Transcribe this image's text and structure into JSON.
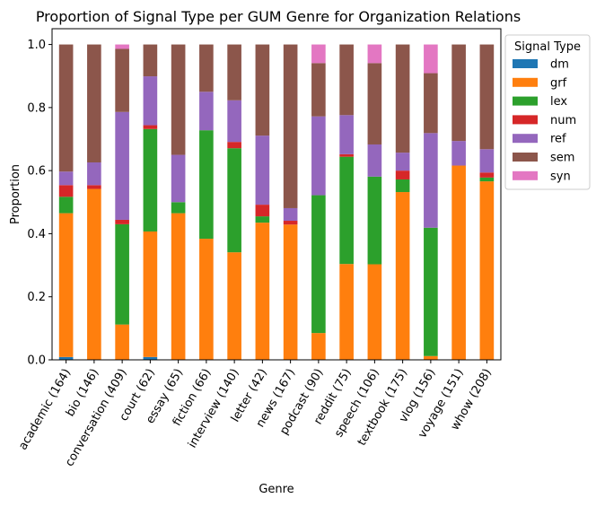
{
  "chart_data": {
    "type": "bar",
    "stacked": true,
    "title": "Proportion of Signal Type per GUM Genre for Organization Relations",
    "xlabel": "Genre",
    "ylabel": "Proportion",
    "ylim": [
      0,
      1.05
    ],
    "yticks": [
      "0.0",
      "0.2",
      "0.4",
      "0.6",
      "0.8",
      "1.0"
    ],
    "categories": [
      "academic (164)",
      "bio (146)",
      "conversation (409)",
      "court (62)",
      "essay (65)",
      "fiction (66)",
      "interview (140)",
      "letter (42)",
      "news (167)",
      "podcast (90)",
      "reddit (75)",
      "speech (106)",
      "textbook (175)",
      "vlog (156)",
      "voyage (151)",
      "whow (208)"
    ],
    "legend": {
      "title": "Signal Type",
      "position": "upper right, outside plot"
    },
    "series": [
      {
        "name": "dm",
        "color": "#1f77b4",
        "values": [
          0.009,
          0,
          0,
          0.009,
          0,
          0,
          0,
          0,
          0,
          0,
          0,
          0,
          0,
          0,
          0,
          0
        ]
      },
      {
        "name": "grf",
        "color": "#ff7f0e",
        "values": [
          0.456,
          0.542,
          0.112,
          0.398,
          0.465,
          0.384,
          0.341,
          0.435,
          0.429,
          0.085,
          0.304,
          0.303,
          0.532,
          0.012,
          0.616,
          0.566
        ]
      },
      {
        "name": "lex",
        "color": "#2ca02c",
        "values": [
          0.052,
          0,
          0.318,
          0.325,
          0.035,
          0.344,
          0.33,
          0.02,
          0,
          0.437,
          0.34,
          0.278,
          0.04,
          0.407,
          0,
          0.012
        ]
      },
      {
        "name": "num",
        "color": "#d62728",
        "values": [
          0.037,
          0.012,
          0.014,
          0.012,
          0,
          0,
          0.02,
          0.037,
          0.012,
          0,
          0.008,
          0,
          0.028,
          0,
          0,
          0.016
        ]
      },
      {
        "name": "ref",
        "color": "#9467bd",
        "values": [
          0.043,
          0.072,
          0.342,
          0.155,
          0.15,
          0.122,
          0.132,
          0.219,
          0.04,
          0.25,
          0.124,
          0.102,
          0.057,
          0.3,
          0.078,
          0.074
        ]
      },
      {
        "name": "sem",
        "color": "#8c564b",
        "values": [
          0.403,
          0.374,
          0.2,
          0.101,
          0.35,
          0.15,
          0.177,
          0.289,
          0.519,
          0.169,
          0.224,
          0.258,
          0.343,
          0.19,
          0.306,
          0.332
        ]
      },
      {
        "name": "syn",
        "color": "#e377c2",
        "values": [
          0,
          0,
          0.014,
          0,
          0,
          0,
          0,
          0,
          0,
          0.059,
          0,
          0.059,
          0,
          0.091,
          0,
          0
        ]
      }
    ]
  }
}
